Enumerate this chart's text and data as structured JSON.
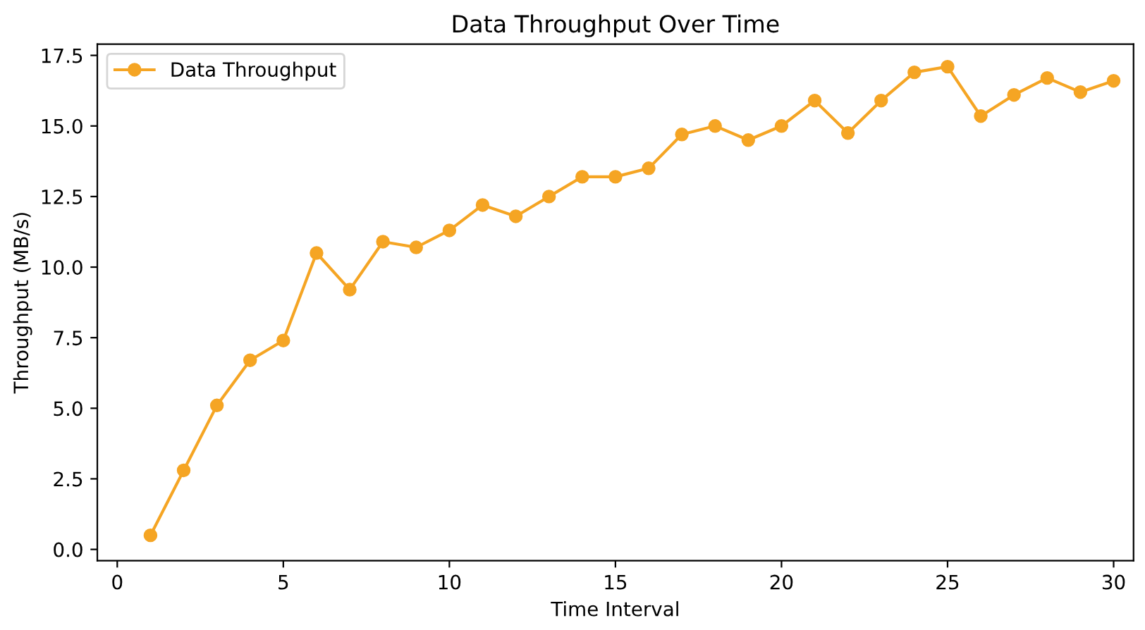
{
  "chart_data": {
    "type": "line",
    "title": "Data Throughput Over Time",
    "xlabel": "Time Interval",
    "ylabel": "Throughput (MB/s)",
    "x": [
      1,
      2,
      3,
      4,
      5,
      6,
      7,
      8,
      9,
      10,
      11,
      12,
      13,
      14,
      15,
      16,
      17,
      18,
      19,
      20,
      21,
      22,
      23,
      24,
      25,
      26,
      27,
      28,
      29,
      30
    ],
    "series": [
      {
        "name": "Data Throughput",
        "color": "#f5a524",
        "values": [
          0.5,
          2.8,
          5.1,
          6.7,
          7.4,
          10.5,
          9.2,
          10.9,
          10.7,
          11.3,
          12.2,
          11.8,
          12.5,
          13.2,
          13.2,
          13.5,
          14.7,
          15.0,
          14.5,
          15.0,
          15.9,
          14.75,
          15.9,
          16.9,
          17.1,
          15.35,
          16.1,
          16.7,
          16.2,
          16.6
        ]
      }
    ],
    "xlim": [
      -0.6,
      30.6
    ],
    "ylim": [
      -0.4,
      17.9
    ],
    "xticks": [
      0,
      5,
      10,
      15,
      20,
      25,
      30
    ],
    "yticks": [
      {
        "value": 0,
        "label": "0.0"
      },
      2.5,
      {
        "value": 5,
        "label": "5.0"
      },
      7.5,
      {
        "value": 10,
        "label": "10.0"
      },
      12.5,
      {
        "value": 15,
        "label": "15.0"
      },
      17.5
    ],
    "marker": "circle",
    "line_style": "solid",
    "legend": "top left",
    "grid": false
  }
}
